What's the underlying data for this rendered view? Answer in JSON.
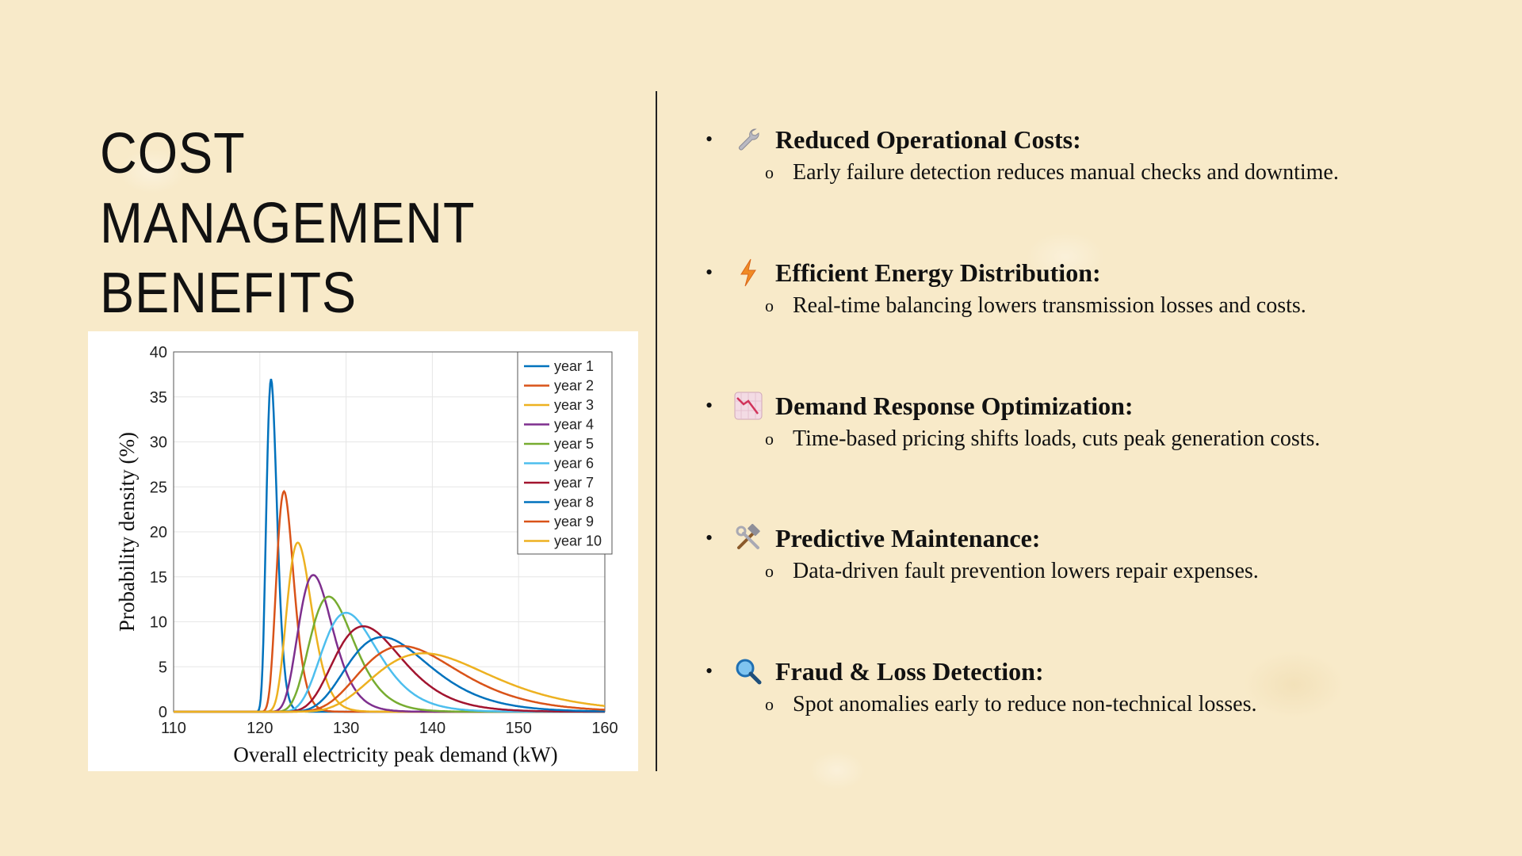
{
  "slide": {
    "title_line1": "COST MANAGEMENT",
    "title_line2": "BENEFITS"
  },
  "benefits": [
    {
      "icon": "wrench-icon",
      "title": "Reduced Operational Costs:",
      "detail": "Early failure detection reduces manual checks and downtime."
    },
    {
      "icon": "lightning-icon",
      "title": "Efficient Energy Distribution:",
      "detail": "Real-time balancing lowers transmission losses and costs."
    },
    {
      "icon": "chart-decreasing-icon",
      "title": "Demand Response Optimization:",
      "detail": "Time-based pricing shifts loads, cuts peak generation costs."
    },
    {
      "icon": "hammer-wrench-icon",
      "title": "Predictive Maintenance:",
      "detail": "Data-driven fault prevention lowers repair expenses."
    },
    {
      "icon": "magnifier-icon",
      "title": "Fraud & Loss Detection:",
      "detail": "Spot anomalies early to reduce non-technical losses."
    }
  ],
  "bullet_glyph": "•",
  "sub_bullet_glyph": "o",
  "chart_data": {
    "type": "line",
    "xlabel": "Overall electricity peak demand (kW)",
    "ylabel": "Probability density (%)",
    "xlim": [
      110,
      160
    ],
    "ylim": [
      0,
      40
    ],
    "xticks": [
      110,
      120,
      130,
      140,
      150,
      160
    ],
    "yticks": [
      0,
      5,
      10,
      15,
      20,
      25,
      30,
      35,
      40
    ],
    "grid": true,
    "legend_position": "top-right",
    "series": [
      {
        "name": "year 1",
        "color": "#0072BD",
        "peak_x": 121.3,
        "peak_y": 37.0
      },
      {
        "name": "year 2",
        "color": "#D95319",
        "peak_x": 122.8,
        "peak_y": 24.5
      },
      {
        "name": "year 3",
        "color": "#EDB120",
        "peak_x": 124.4,
        "peak_y": 18.8
      },
      {
        "name": "year 4",
        "color": "#7E2F8E",
        "peak_x": 126.2,
        "peak_y": 15.2
      },
      {
        "name": "year 5",
        "color": "#77AC30",
        "peak_x": 128.0,
        "peak_y": 12.8
      },
      {
        "name": "year 6",
        "color": "#4DBEEE",
        "peak_x": 130.0,
        "peak_y": 11.0
      },
      {
        "name": "year 7",
        "color": "#A2142F",
        "peak_x": 132.0,
        "peak_y": 9.5
      },
      {
        "name": "year 8",
        "color": "#0072BD",
        "peak_x": 134.2,
        "peak_y": 8.3
      },
      {
        "name": "year 9",
        "color": "#D95319",
        "peak_x": 136.5,
        "peak_y": 7.3
      },
      {
        "name": "year 10",
        "color": "#EDB120",
        "peak_x": 139.0,
        "peak_y": 6.5
      }
    ]
  }
}
